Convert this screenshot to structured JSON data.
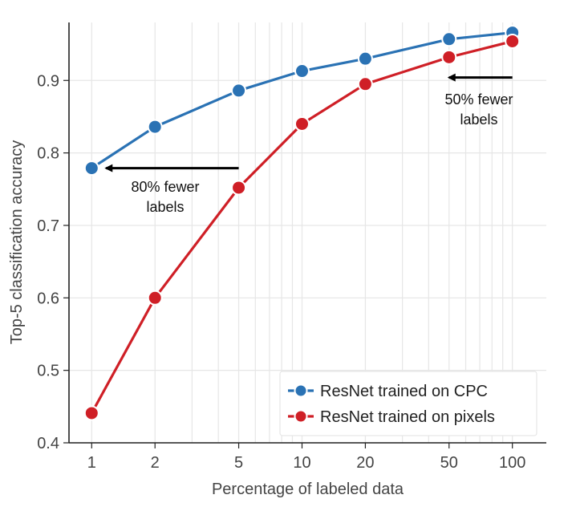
{
  "chart_data": {
    "type": "line",
    "title": "",
    "xlabel": "Percentage of labeled data",
    "ylabel": "Top-5 classification accuracy",
    "x_scale": "log",
    "x": [
      1,
      2,
      5,
      10,
      20,
      50,
      100
    ],
    "x_tick_labels": [
      "1",
      "2",
      "5",
      "10",
      "20",
      "50",
      "100"
    ],
    "ylim": [
      0.4,
      0.97
    ],
    "y_ticks": [
      0.4,
      0.5,
      0.6,
      0.7,
      0.8,
      0.9
    ],
    "y_tick_labels": [
      "0.4",
      "0.5",
      "0.6",
      "0.7",
      "0.8",
      "0.9"
    ],
    "grid": true,
    "legend_position": "bottom-right",
    "series": [
      {
        "name": "ResNet trained on CPC",
        "color": "#2a72b4",
        "values": [
          0.779,
          0.836,
          0.886,
          0.913,
          0.93,
          0.957,
          0.966
        ]
      },
      {
        "name": "ResNet trained on pixels",
        "color": "#cf1f26",
        "values": [
          0.441,
          0.6,
          0.752,
          0.84,
          0.895,
          0.932,
          0.954
        ]
      }
    ],
    "annotations": [
      {
        "text_lines": [
          "80% fewer",
          "labels"
        ],
        "arrow_from": {
          "x": 5,
          "y": 0.779
        },
        "arrow_to": {
          "x": 1,
          "y": 0.779
        }
      },
      {
        "text_lines": [
          "50% fewer",
          "labels"
        ],
        "arrow_from": {
          "x": 100,
          "y": 0.904
        },
        "arrow_to": {
          "x": 50,
          "y": 0.904
        }
      }
    ]
  }
}
